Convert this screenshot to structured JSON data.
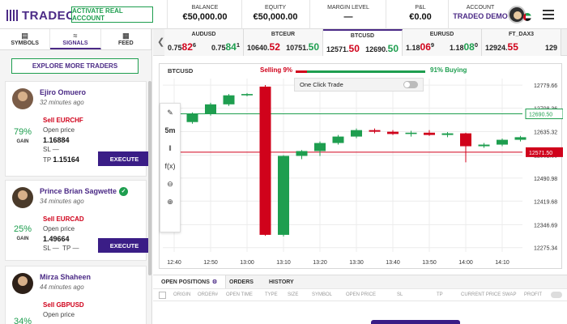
{
  "header": {
    "logo": "TRADEO",
    "activate_label": "ACTIVATE REAL ACCOUNT",
    "stats": [
      {
        "label": "BALANCE",
        "value": "€50,000.00"
      },
      {
        "label": "EQUITY",
        "value": "€50,000.00"
      },
      {
        "label": "MARGIN LEVEL",
        "value": "—"
      },
      {
        "label": "P&L",
        "value": "€0.00"
      },
      {
        "label": "ACCOUNT",
        "value": "TRADEO DEMO"
      }
    ]
  },
  "left_panel": {
    "tabs": [
      {
        "label": "SYMBOLS",
        "icon": "chart-icon"
      },
      {
        "label": "SIGNALS",
        "icon": "signal-icon"
      },
      {
        "label": "FEED",
        "icon": "feed-icon"
      }
    ],
    "explore_label": "EXPLORE MORE TRADERS",
    "gain_label": "GAIN",
    "open_price_label": "Open price",
    "execute_label": "EXECUTE",
    "traders": [
      {
        "name": "Ejiro Omuero",
        "time": "32 minutes ago",
        "gain": "79%",
        "signal": "Sell EURCHF",
        "open_price": "1.16884",
        "sl": "SL —",
        "tp_label": "TP",
        "tp_value": "1.15164",
        "verified": false
      },
      {
        "name": "Prince Brian Sagwette",
        "time": "34 minutes ago",
        "gain": "25%",
        "signal": "Sell EURCAD",
        "open_price": "1.49664",
        "sl": "SL —",
        "tp_label": "TP —",
        "tp_value": "",
        "verified": true
      },
      {
        "name": "Mirza Shaheen",
        "time": "44 minutes ago",
        "gain": "34%",
        "signal": "Sell GBPUSD",
        "open_price": "",
        "sl": "",
        "tp_label": "",
        "tp_value": "",
        "verified": false
      }
    ]
  },
  "ticker": [
    {
      "symbol": "AUDUSD",
      "bid_pre": "0.75",
      "bid_big": "82",
      "bid_sup": "6",
      "ask_pre": "0.75",
      "ask_big": "84",
      "ask_sup": "1"
    },
    {
      "symbol": "BTCEUR",
      "bid_pre": "10640.",
      "bid_big": "52",
      "bid_sup": "",
      "ask_pre": "10751.",
      "ask_big": "50",
      "ask_sup": ""
    },
    {
      "symbol": "BTCUSD",
      "bid_pre": "12571.",
      "bid_big": "50",
      "bid_sup": "",
      "ask_pre": "12690.",
      "ask_big": "50",
      "ask_sup": ""
    },
    {
      "symbol": "EURUSD",
      "bid_pre": "1.18",
      "bid_big": "06",
      "bid_sup": "9",
      "ask_pre": "1.18",
      "ask_big": "08",
      "ask_sup": "0"
    },
    {
      "symbol": "FT_DAX3",
      "bid_pre": "12924.",
      "bid_big": "55",
      "bid_sup": "",
      "ask_pre": "129",
      "ask_big": "",
      "ask_sup": ""
    }
  ],
  "chart": {
    "symbol": "BTCUSD",
    "selling_label": "Selling 9%",
    "buying_label": "91% Buying",
    "selling_pct": 9,
    "one_click_label": "One Click Trade",
    "timeframe": "5m",
    "ask_line_label": "12690.50",
    "bid_line_label": "12571.50",
    "colors": {
      "up": "#1e9e4f",
      "down": "#d0021b",
      "accent": "#4b2a86"
    }
  },
  "chart_data": {
    "type": "candlestick",
    "x": [
      "12:40",
      "12:45",
      "12:50",
      "12:55",
      "13:00",
      "13:05",
      "13:10",
      "13:15",
      "13:20",
      "13:25",
      "13:30",
      "13:35",
      "13:40",
      "13:45",
      "13:50",
      "13:55",
      "14:00",
      "14:05",
      "14:10",
      "14:15"
    ],
    "open": [
      12660,
      12665,
      12690,
      12720,
      12748,
      12775,
      12315,
      12560,
      12575,
      12600,
      12620,
      12640,
      12635,
      12628,
      12632,
      12625,
      12630,
      12590,
      12595,
      12610
    ],
    "close": [
      12650,
      12690,
      12720,
      12748,
      12752,
      12315,
      12560,
      12575,
      12600,
      12620,
      12640,
      12635,
      12628,
      12632,
      12625,
      12630,
      12590,
      12595,
      12610,
      12618
    ],
    "high": [
      12668,
      12695,
      12725,
      12752,
      12755,
      12780,
      12562,
      12578,
      12605,
      12625,
      12645,
      12645,
      12640,
      12638,
      12640,
      12634,
      12632,
      12600,
      12614,
      12622
    ],
    "low": [
      12645,
      12660,
      12685,
      12715,
      12745,
      12312,
      12310,
      12550,
      12560,
      12595,
      12615,
      12630,
      12625,
      12620,
      12622,
      12618,
      12540,
      12585,
      12590,
      12605
    ],
    "y_ticks": [
      "12779.66",
      "12708.36",
      "12635.32",
      "12562.35",
      "12490.98",
      "12419.68",
      "12346.69",
      "12275.34"
    ],
    "x_ticks": [
      "12:40",
      "12:50",
      "13:00",
      "13:10",
      "13:20",
      "13:30",
      "13:40",
      "13:50",
      "14:00",
      "14:10"
    ],
    "ylim": [
      12262,
      12800
    ],
    "ask_line": 12690.5,
    "bid_line": 12571.5
  },
  "bottom": {
    "tabs": [
      "OPEN POSITIONS",
      "ORDERS",
      "HISTORY"
    ],
    "columns": [
      "ORIGIN",
      "ORDER#",
      "OPEN TIME",
      "TYPE",
      "SIZE",
      "SYMBOL",
      "OPEN PRICE",
      "SL",
      "TP",
      "CURRENT PRICE",
      "SWAP",
      "PROFIT"
    ]
  }
}
